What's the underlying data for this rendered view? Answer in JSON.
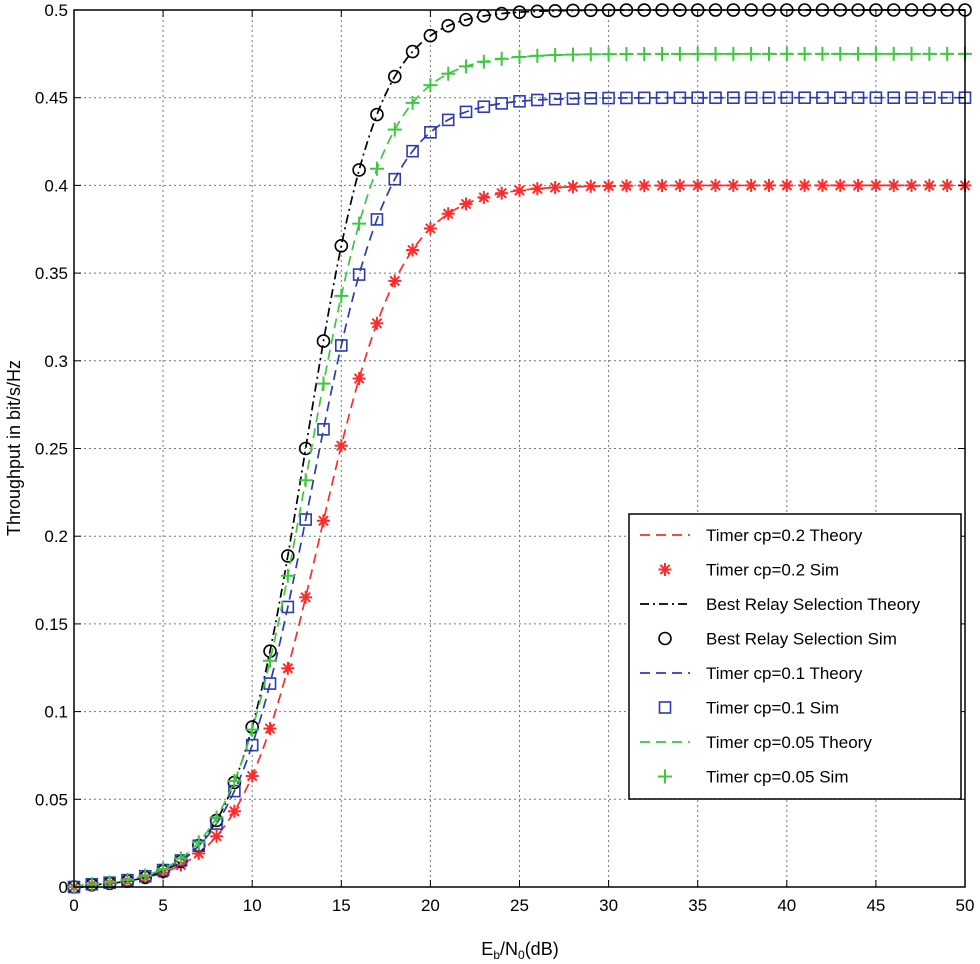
{
  "chart_data": {
    "type": "line",
    "title": "",
    "xlabel": "Eb/N0(dB)",
    "xlabel_main": "E",
    "xlabel_sub1": "b",
    "xlabel_mid": "/N",
    "xlabel_sub2": "0",
    "xlabel_tail": "(dB)",
    "ylabel": "Throughput in bit/s/Hz",
    "xlim": [
      0,
      50
    ],
    "ylim": [
      0,
      0.5
    ],
    "grid": true,
    "legend_position": "bottom-right",
    "x_ticks": [
      0,
      5,
      10,
      15,
      20,
      25,
      30,
      35,
      40,
      45,
      50
    ],
    "x_tick_labels": [
      "0",
      "5",
      "10",
      "15",
      "20",
      "25",
      "30",
      "35",
      "40",
      "45",
      "50"
    ],
    "y_ticks": [
      0,
      0.05,
      0.1,
      0.15,
      0.2,
      0.25,
      0.3,
      0.35,
      0.4,
      0.45,
      0.5
    ],
    "y_tick_labels": [
      "0",
      "0.05",
      "0.1",
      "0.15",
      "0.2",
      "0.25",
      "0.3",
      "0.35",
      "0.4",
      "0.45",
      "0.5"
    ],
    "series": [
      {
        "name": "Timer cp=0.2 Theory",
        "kind": "theory",
        "color": "#ff2a2a",
        "dash": "10,6",
        "sat": 0.4,
        "mid": 13.8,
        "k": 0.44
      },
      {
        "name": "Timer cp=0.2 Sim",
        "kind": "sim",
        "color": "#ff2a2a",
        "marker": "star",
        "sat": 0.4,
        "mid": 13.8,
        "k": 0.44
      },
      {
        "name": "Best Relay Selection Theory",
        "kind": "theory",
        "color": "#000000",
        "dash": "9,4,2,4",
        "sat": 0.5,
        "mid": 13.0,
        "k": 0.5
      },
      {
        "name": "Best Relay Selection Sim",
        "kind": "sim",
        "color": "#000000",
        "marker": "circle",
        "sat": 0.5,
        "mid": 13.0,
        "k": 0.5
      },
      {
        "name": "Timer cp=0.1 Theory",
        "kind": "theory",
        "color": "#2b3bb0",
        "dash": "10,6",
        "sat": 0.45,
        "mid": 13.3,
        "k": 0.46
      },
      {
        "name": "Timer cp=0.1 Sim",
        "kind": "sim",
        "color": "#2b3bb0",
        "marker": "square",
        "sat": 0.45,
        "mid": 13.3,
        "k": 0.46
      },
      {
        "name": "Timer cp=0.05 Theory",
        "kind": "theory",
        "color": "#3cc83c",
        "dash": "10,6",
        "sat": 0.475,
        "mid": 13.1,
        "k": 0.47
      },
      {
        "name": "Timer cp=0.05 Sim",
        "kind": "sim",
        "color": "#3cc83c",
        "marker": "plus",
        "sat": 0.475,
        "mid": 13.1,
        "k": 0.47
      }
    ]
  }
}
